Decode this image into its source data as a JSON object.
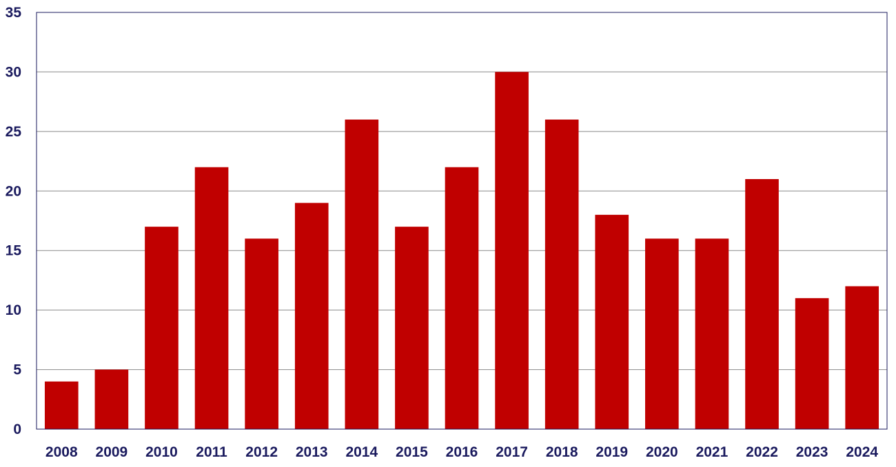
{
  "chart_data": {
    "type": "bar",
    "title": "",
    "xlabel": "",
    "ylabel": "",
    "categories": [
      "2008",
      "2009",
      "2010",
      "2011",
      "2012",
      "2013",
      "2014",
      "2015",
      "2016",
      "2017",
      "2018",
      "2019",
      "2020",
      "2021",
      "2022",
      "2023",
      "2024"
    ],
    "values": [
      4,
      5,
      17,
      22,
      16,
      19,
      26,
      17,
      22,
      30,
      26,
      18,
      16,
      16,
      21,
      11,
      12
    ],
    "ylim": [
      0,
      35
    ],
    "yticks": [
      0,
      5,
      10,
      15,
      20,
      25,
      30,
      35
    ],
    "grid": true,
    "legend": "none",
    "colors": {
      "bar": "#c00000",
      "axis_text": "#1a1a5e",
      "grid": "#8a8a8a"
    }
  }
}
